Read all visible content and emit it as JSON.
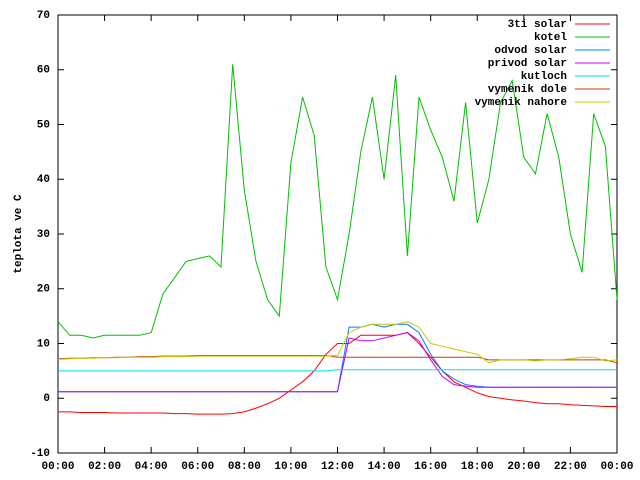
{
  "chart_data": {
    "type": "line",
    "y_label": "teplota ve C",
    "x": [
      0,
      0.5,
      1,
      1.5,
      2,
      2.5,
      3,
      3.5,
      4,
      4.5,
      5,
      5.5,
      6,
      6.5,
      7,
      7.5,
      8,
      8.5,
      9,
      9.5,
      10,
      10.5,
      11,
      11.5,
      12,
      12.5,
      13,
      13.5,
      14,
      14.5,
      15,
      15.5,
      16,
      16.5,
      17,
      17.5,
      18,
      18.5,
      19,
      19.5,
      20,
      20.5,
      21,
      21.5,
      22,
      22.5,
      23,
      23.5,
      24
    ],
    "xlim": [
      0,
      24
    ],
    "xticks": [
      {
        "value": 0,
        "label": "00:00"
      },
      {
        "value": 2,
        "label": "02:00"
      },
      {
        "value": 4,
        "label": "04:00"
      },
      {
        "value": 6,
        "label": "06:00"
      },
      {
        "value": 8,
        "label": "08:00"
      },
      {
        "value": 10,
        "label": "10:00"
      },
      {
        "value": 12,
        "label": "12:00"
      },
      {
        "value": 14,
        "label": "14:00"
      },
      {
        "value": 16,
        "label": "16:00"
      },
      {
        "value": 18,
        "label": "18:00"
      },
      {
        "value": 20,
        "label": "20:00"
      },
      {
        "value": 22,
        "label": "22:00"
      },
      {
        "value": 24,
        "label": "00:00"
      }
    ],
    "ylim": [
      -10,
      70
    ],
    "yticks": [
      -10,
      0,
      10,
      20,
      30,
      40,
      50,
      60,
      70
    ],
    "legend_position": "top-right",
    "series": [
      {
        "name": "3ti solar",
        "color": "#ff0000",
        "values": [
          -2.5,
          -2.5,
          -2.6,
          -2.6,
          -2.6,
          -2.7,
          -2.7,
          -2.7,
          -2.7,
          -2.7,
          -2.8,
          -2.8,
          -2.9,
          -2.9,
          -2.9,
          -2.8,
          -2.5,
          -1.8,
          -1,
          0,
          1.5,
          3,
          5,
          8,
          10,
          10,
          11.5,
          11.5,
          11.5,
          11.5,
          12,
          10,
          7.5,
          5,
          3,
          2,
          1,
          0.3,
          0,
          -0.3,
          -0.5,
          -0.8,
          -1,
          -1,
          -1.2,
          -1.3,
          -1.4,
          -1.5,
          -1.5
        ]
      },
      {
        "name": "kotel",
        "color": "#00c000",
        "values": [
          14,
          11.5,
          11.5,
          11,
          11.5,
          11.5,
          11.5,
          11.5,
          12,
          19,
          22,
          25,
          25.5,
          26,
          24,
          61,
          38,
          25,
          18,
          15,
          43,
          55,
          48,
          24,
          18,
          30,
          45,
          55,
          40,
          59,
          26,
          55,
          49,
          44,
          36,
          54,
          32,
          40,
          54,
          58,
          44,
          41,
          52,
          44,
          30,
          23,
          52,
          46,
          18
        ]
      },
      {
        "name": "odvod solar",
        "color": "#0080ff",
        "values": [
          1.2,
          1.2,
          1.2,
          1.2,
          1.2,
          1.2,
          1.2,
          1.2,
          1.2,
          1.2,
          1.2,
          1.2,
          1.2,
          1.2,
          1.2,
          1.2,
          1.2,
          1.2,
          1.2,
          1.2,
          1.2,
          1.2,
          1.2,
          1.2,
          1.2,
          13,
          13,
          13.5,
          13,
          13.5,
          13.5,
          12,
          8,
          5,
          3.5,
          2.5,
          2.2,
          2,
          2,
          2,
          2,
          2,
          2,
          2,
          2,
          2,
          2,
          2,
          2
        ]
      },
      {
        "name": "privod solar",
        "color": "#c000ff",
        "values": [
          1.2,
          1.2,
          1.2,
          1.2,
          1.2,
          1.2,
          1.2,
          1.2,
          1.2,
          1.2,
          1.2,
          1.2,
          1.2,
          1.2,
          1.2,
          1.2,
          1.2,
          1.2,
          1.2,
          1.2,
          1.2,
          1.2,
          1.2,
          1.2,
          1.2,
          11,
          10.5,
          10.5,
          11,
          11.5,
          12,
          10.5,
          7,
          4,
          2.5,
          2.2,
          2,
          2,
          2,
          2,
          2,
          2,
          2,
          2,
          2,
          2,
          2,
          2,
          2
        ]
      },
      {
        "name": "kutloch",
        "color": "#00e0e0",
        "values": [
          5,
          5,
          5,
          5,
          5,
          5,
          5,
          5,
          5,
          5,
          5,
          5,
          5,
          5,
          5,
          5,
          5,
          5,
          5,
          5,
          5,
          5,
          5,
          5,
          5.2,
          5.2,
          5.2,
          5.2,
          5.2,
          5.2,
          5.2,
          5.2,
          5.2,
          5.2,
          5.2,
          5.2,
          5.2,
          5.2,
          5.2,
          5.2,
          5.2,
          5.2,
          5.2,
          5.2,
          5.2,
          5.2,
          5.2,
          5.2,
          5.2
        ]
      },
      {
        "name": "vymenik dole",
        "color": "#c04000",
        "values": [
          7.2,
          7.3,
          7.3,
          7.4,
          7.4,
          7.5,
          7.5,
          7.6,
          7.6,
          7.7,
          7.7,
          7.7,
          7.8,
          7.8,
          7.8,
          7.8,
          7.8,
          7.8,
          7.8,
          7.8,
          7.8,
          7.8,
          7.8,
          7.8,
          7.5,
          7.5,
          7.5,
          7.5,
          7.5,
          7.5,
          7.5,
          7.5,
          7.5,
          7.5,
          7.5,
          7.5,
          7.5,
          7,
          7,
          7,
          7,
          7,
          7,
          7,
          7,
          7,
          7,
          7,
          6.5
        ]
      },
      {
        "name": "vymenik nahore",
        "color": "#c8c800",
        "values": [
          7.1,
          7.2,
          7.3,
          7.3,
          7.4,
          7.4,
          7.5,
          7.5,
          7.5,
          7.6,
          7.6,
          7.6,
          7.7,
          7.7,
          7.7,
          7.7,
          7.7,
          7.7,
          7.7,
          7.7,
          7.7,
          7.7,
          7.7,
          7.7,
          7.8,
          12,
          13,
          13.5,
          13.5,
          13.5,
          14,
          13,
          10,
          9.5,
          9,
          8.5,
          8,
          6.5,
          7,
          7,
          7,
          6.8,
          7,
          7,
          7.2,
          7.5,
          7.5,
          6.8,
          7
        ]
      }
    ]
  }
}
